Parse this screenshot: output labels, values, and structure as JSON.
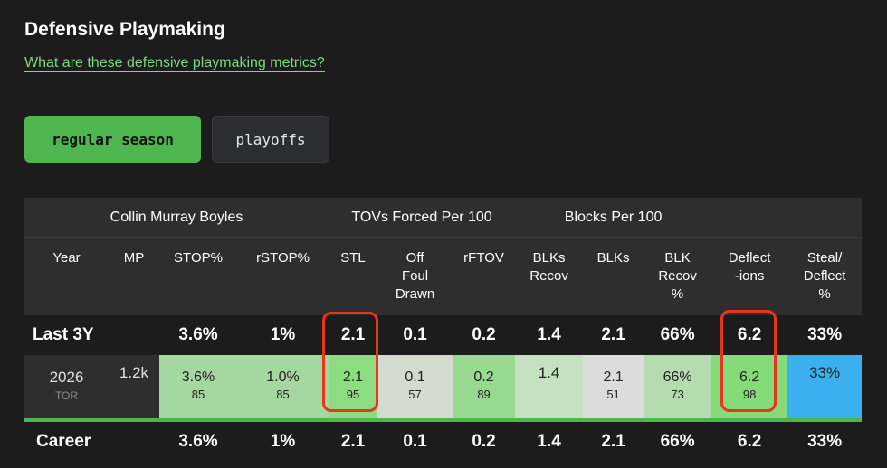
{
  "section_title": "Defensive Playmaking",
  "metrics_link": "What are these defensive playmaking metrics?",
  "season_toggle": {
    "regular": "regular season",
    "playoffs": "playoffs",
    "selected": "regular season"
  },
  "table": {
    "groups": {
      "player": "Collin Murray Boyles",
      "tovs": "TOVs Forced Per 100",
      "blocks": "Blocks Per 100"
    },
    "columns": {
      "year": "Year",
      "mp": "MP",
      "stop": "STOP%",
      "rstop": "rSTOP%",
      "stl": "STL",
      "off_foul_1": "Off",
      "off_foul_2": "Foul",
      "off_foul_3": "Drawn",
      "rftov": "rFTOV",
      "blks_recov_1": "BLKs",
      "blks_recov_2": "Recov",
      "blks": "BLKs",
      "blk_recov_1": "BLK",
      "blk_recov_2": "Recov",
      "blk_recov_3": "%",
      "deflections_1": "Deflect",
      "deflections_2": "-ions",
      "steal_deflect_1": "Steal/",
      "steal_deflect_2": "Deflect",
      "steal_deflect_3": "%"
    },
    "last3": {
      "label": "Last 3Y",
      "stop": "3.6%",
      "rstop": "1%",
      "stl": "2.1",
      "off_foul": "0.1",
      "rftov": "0.2",
      "blks_recov": "1.4",
      "blks": "2.1",
      "blk_recov_pct": "66%",
      "deflections": "6.2",
      "steal_deflect": "33%"
    },
    "season": {
      "year": "2026",
      "team": "TOR",
      "mp": "1.2k",
      "stop": "3.6%",
      "stop_pct": "85",
      "rstop": "1.0%",
      "rstop_pct": "85",
      "stl": "2.1",
      "stl_pct": "95",
      "off_foul": "0.1",
      "off_foul_pct": "57",
      "rftov": "0.2",
      "rftov_pct": "89",
      "blks_recov": "1.4",
      "blks": "2.1",
      "blks_pct": "51",
      "blk_recov_pct": "66%",
      "blk_recov_pct_rank": "73",
      "deflections": "6.2",
      "deflections_pct": "98",
      "steal_deflect": "33%"
    },
    "career": {
      "label": "Career",
      "stop": "3.6%",
      "rstop": "1%",
      "stl": "2.1",
      "off_foul": "0.1",
      "rftov": "0.2",
      "blks_recov": "1.4",
      "blks": "2.1",
      "blk_recov_pct": "66%",
      "deflections": "6.2",
      "steal_deflect": "33%"
    }
  },
  "colors": {
    "background": "#1c1c1c",
    "accent_green": "#4fb54f",
    "link_green": "#7fd87f",
    "highlight_red": "#e8361d",
    "cell_blue": "#3ab0f0"
  }
}
